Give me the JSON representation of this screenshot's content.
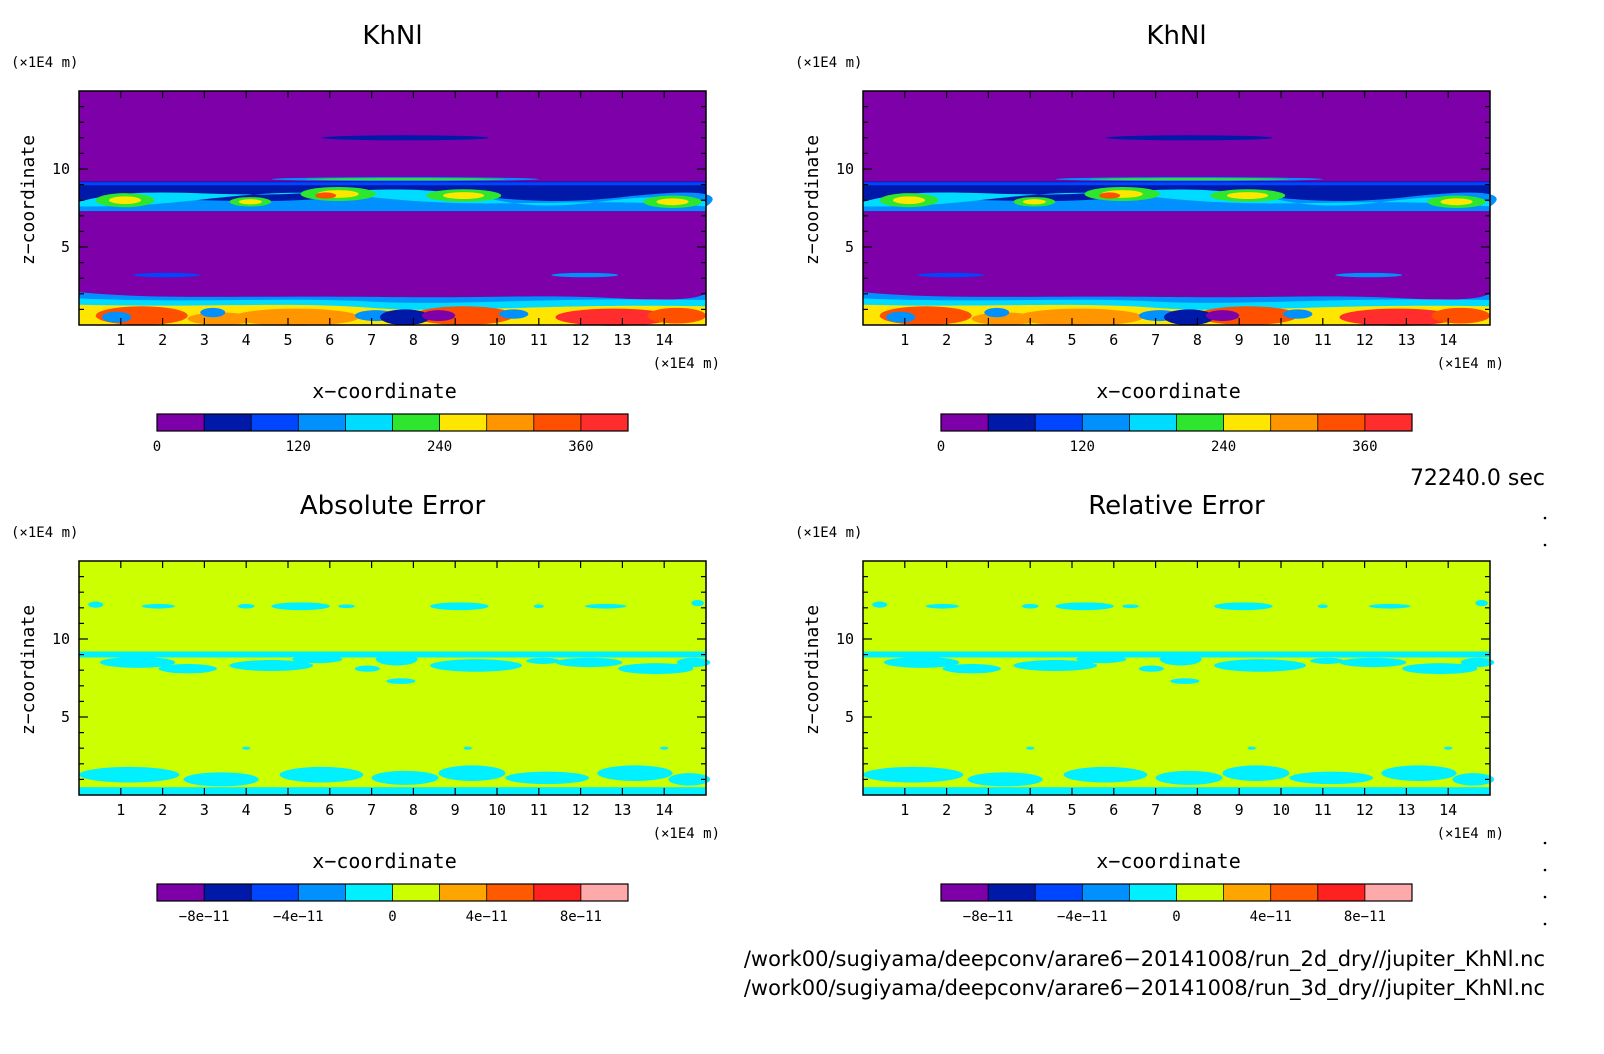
{
  "panels": [
    {
      "title": "KhNl",
      "xlabel": "x−coordinate",
      "ylabel": "z−coordinate",
      "x_unit": "(×1E4 m)",
      "z_unit": "(×1E4 m)",
      "colorbar_labels": [
        "0",
        "120",
        "240",
        "360"
      ]
    },
    {
      "title": "KhNl",
      "xlabel": "x−coordinate",
      "ylabel": "z−coordinate",
      "x_unit": "(×1E4 m)",
      "z_unit": "(×1E4 m)",
      "colorbar_labels": [
        "0",
        "120",
        "240",
        "360"
      ]
    },
    {
      "title": "Absolute Error",
      "xlabel": "x−coordinate",
      "ylabel": "z−coordinate",
      "x_unit": "(×1E4 m)",
      "z_unit": "(×1E4 m)",
      "colorbar_labels": [
        "−8e−11",
        "−4e−11",
        "0",
        "4e−11",
        "8e−11"
      ]
    },
    {
      "title": "Relative Error",
      "xlabel": "x−coordinate",
      "ylabel": "z−coordinate",
      "x_unit": "(×1E4 m)",
      "z_unit": "(×1E4 m)",
      "colorbar_labels": [
        "−8e−11",
        "−4e−11",
        "0",
        "4e−11",
        "8e−11"
      ]
    }
  ],
  "time_label": "72240.0 sec",
  "file_paths": [
    "/work00/sugiyama/deepconv/arare6−20141008/run_2d_dry//jupiter_KhNl.nc",
    "/work00/sugiyama/deepconv/arare6−20141008/run_3d_dry//jupiter_KhNl.nc"
  ],
  "colors": {
    "khnl_levels": [
      "#7d00a8",
      "#0019a8",
      "#0046ff",
      "#0091ff",
      "#00dcff",
      "#2ee62e",
      "#ffe600",
      "#ff9600",
      "#ff5000",
      "#ff2d2d"
    ],
    "error_levels": [
      "#7d00a8",
      "#0019a8",
      "#0046ff",
      "#0091ff",
      "#00f0ff",
      "#ccff00",
      "#ffa500",
      "#ff5a00",
      "#ff2020",
      "#ffaaaa"
    ]
  },
  "chart_data": [
    {
      "type": "heatmap",
      "title": "KhNl",
      "xlabel": "x−coordinate",
      "ylabel": "z−coordinate",
      "x_unit": "(×1E4 m)",
      "z_unit": "(×1E4 m)",
      "xlim": [
        0,
        15
      ],
      "ylim": [
        0,
        15
      ],
      "x_ticks": [
        1,
        2,
        3,
        4,
        5,
        6,
        7,
        8,
        9,
        10,
        11,
        12,
        13,
        14
      ],
      "y_ticks": [
        5,
        10
      ],
      "colorbar": {
        "levels": [
          0,
          40,
          80,
          120,
          160,
          200,
          240,
          280,
          320,
          360,
          400
        ],
        "labels": [
          0,
          120,
          240,
          360
        ]
      },
      "background_level": 0,
      "features": [
        {
          "kind": "layer",
          "z_range": [
            0,
            2.0
          ],
          "max_value": 380,
          "note": "turbulent lower boundary layer"
        },
        {
          "kind": "layer",
          "z_range": [
            7.3,
            9.2
          ],
          "max_value": 280,
          "note": "upper mixing layer with cells near x = 1, 4, 6, 9, 13, 14.5"
        },
        {
          "kind": "thin_band",
          "z": 12.0,
          "x_range": [
            5.8,
            9.8
          ],
          "value": 80
        },
        {
          "kind": "thin_band",
          "z": 9.3,
          "x_range": [
            4,
            10.4
          ],
          "value": 160
        },
        {
          "kind": "thin_band",
          "z": 3.2,
          "x_range": [
            1.9,
            2.9
          ],
          "value": 120
        },
        {
          "kind": "thin_band",
          "z": 3.2,
          "x_range": [
            11.8,
            13.3
          ],
          "value": 120
        }
      ]
    },
    {
      "type": "heatmap",
      "title": "KhNl",
      "xlabel": "x−coordinate",
      "ylabel": "z−coordinate",
      "x_unit": "(×1E4 m)",
      "z_unit": "(×1E4 m)",
      "xlim": [
        0,
        15
      ],
      "ylim": [
        0,
        15
      ],
      "x_ticks": [
        1,
        2,
        3,
        4,
        5,
        6,
        7,
        8,
        9,
        10,
        11,
        12,
        13,
        14
      ],
      "y_ticks": [
        5,
        10
      ],
      "colorbar": {
        "levels": [
          0,
          40,
          80,
          120,
          160,
          200,
          240,
          280,
          320,
          360,
          400
        ],
        "labels": [
          0,
          120,
          240,
          360
        ]
      },
      "note": "identical to the first KhNl panel"
    },
    {
      "type": "heatmap",
      "title": "Absolute Error",
      "xlabel": "x−coordinate",
      "ylabel": "z−coordinate",
      "x_unit": "(×1E4 m)",
      "z_unit": "(×1E4 m)",
      "xlim": [
        0,
        15
      ],
      "ylim": [
        0,
        15
      ],
      "x_ticks": [
        1,
        2,
        3,
        4,
        5,
        6,
        7,
        8,
        9,
        10,
        11,
        12,
        13,
        14
      ],
      "y_ticks": [
        5,
        10
      ],
      "colorbar": {
        "levels": [
          -1e-10,
          -8e-11,
          -6e-11,
          -4e-11,
          -2e-11,
          0,
          2e-11,
          4e-11,
          6e-11,
          8e-11,
          1e-10
        ],
        "labels": [
          -8e-11,
          -4e-11,
          0,
          4e-11,
          8e-11
        ]
      },
      "background_level": 0,
      "features": [
        {
          "kind": "patches",
          "level": -2e-11,
          "z_range": [
            0,
            2.1
          ],
          "note": "cyan patches in lower layer"
        },
        {
          "kind": "patches",
          "level": -2e-11,
          "z_range": [
            7.3,
            9.2
          ],
          "note": "cyan patches in upper layer"
        },
        {
          "kind": "patches",
          "level": -2e-11,
          "z_range": [
            11.8,
            12.3
          ],
          "note": "small cyan patches near top"
        }
      ]
    },
    {
      "type": "heatmap",
      "title": "Relative Error",
      "xlabel": "x−coordinate",
      "ylabel": "z−coordinate",
      "x_unit": "(×1E4 m)",
      "z_unit": "(×1E4 m)",
      "xlim": [
        0,
        15
      ],
      "ylim": [
        0,
        15
      ],
      "x_ticks": [
        1,
        2,
        3,
        4,
        5,
        6,
        7,
        8,
        9,
        10,
        11,
        12,
        13,
        14
      ],
      "y_ticks": [
        5,
        10
      ],
      "colorbar": {
        "levels": [
          -1e-10,
          -8e-11,
          -6e-11,
          -4e-11,
          -2e-11,
          0,
          2e-11,
          4e-11,
          6e-11,
          8e-11,
          1e-10
        ],
        "labels": [
          -8e-11,
          -4e-11,
          0,
          4e-11,
          8e-11
        ]
      },
      "note": "pattern identical to Absolute Error panel"
    }
  ]
}
